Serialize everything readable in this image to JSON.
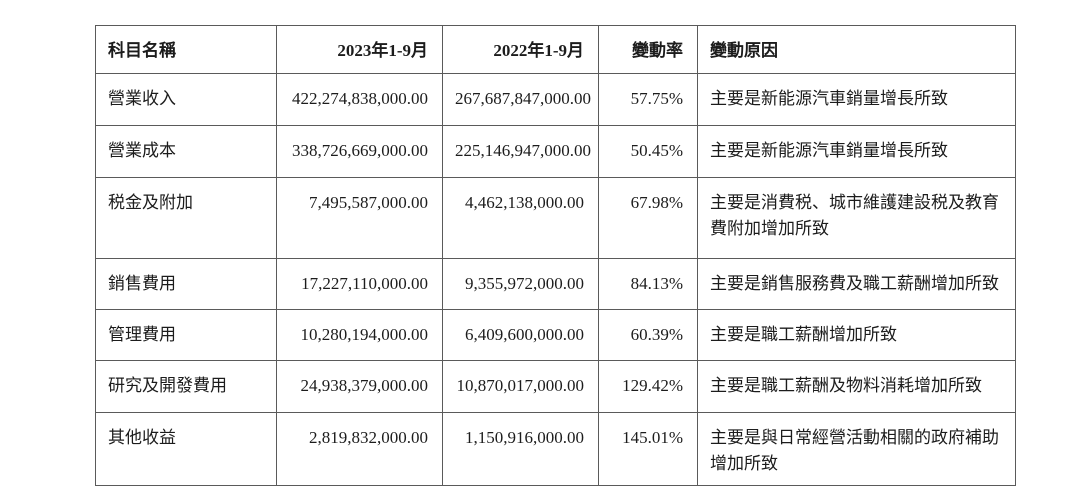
{
  "table": {
    "headers": {
      "account": "科目名稱",
      "period_2023": "2023年1-9月",
      "period_2022": "2022年1-9月",
      "change_rate": "變動率",
      "change_reason": "變動原因"
    },
    "rows": [
      {
        "account": "營業收入",
        "v2023": "422,274,838,000.00",
        "v2022": "267,687,847,000.00",
        "rate": "57.75%",
        "reason": "主要是新能源汽車銷量增長所致"
      },
      {
        "account": "營業成本",
        "v2023": "338,726,669,000.00",
        "v2022": "225,146,947,000.00",
        "rate": "50.45%",
        "reason": "主要是新能源汽車銷量增長所致"
      },
      {
        "account": "税金及附加",
        "v2023": "7,495,587,000.00",
        "v2022": "4,462,138,000.00",
        "rate": "67.98%",
        "reason": "主要是消費税、城市維護建設税及教育費附加增加所致"
      },
      {
        "account": "銷售費用",
        "v2023": "17,227,110,000.00",
        "v2022": "9,355,972,000.00",
        "rate": "84.13%",
        "reason": "主要是銷售服務費及職工薪酬增加所致"
      },
      {
        "account": "管理費用",
        "v2023": "10,280,194,000.00",
        "v2022": "6,409,600,000.00",
        "rate": "60.39%",
        "reason": "主要是職工薪酬增加所致"
      },
      {
        "account": "研究及開發費用",
        "v2023": "24,938,379,000.00",
        "v2022": "10,870,017,000.00",
        "rate": "129.42%",
        "reason": "主要是職工薪酬及物料消耗增加所致"
      },
      {
        "account": "其他收益",
        "v2023": "2,819,832,000.00",
        "v2022": "1,150,916,000.00",
        "rate": "145.01%",
        "reason": "主要是與日常經營活動相關的政府補助增加所致"
      }
    ]
  },
  "colors": {
    "border": "#5a5a5a",
    "text": "#1c1c1c",
    "background": "#ffffff"
  }
}
